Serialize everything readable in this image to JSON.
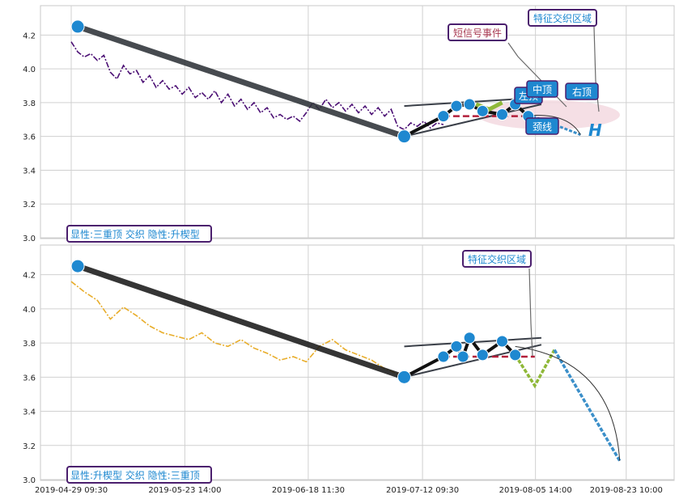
{
  "chart_data": [
    {
      "type": "line",
      "panel": "top",
      "ylim": [
        3.0,
        4.35
      ],
      "yticks": [
        "3.0",
        "3.2",
        "3.4",
        "3.6",
        "3.8",
        "4.0",
        "4.2"
      ],
      "grid": true,
      "colors": {
        "price": "#4b0f74",
        "trend": "#2e3338",
        "pivot": "#1e88d0",
        "band": "#f3d9e1",
        "neck": "#b21f3a",
        "wedge": "#8fb838"
      },
      "price_series": [
        {
          "d": 0,
          "y": 4.16
        },
        {
          "d": 1,
          "y": 4.1
        },
        {
          "d": 2,
          "y": 4.07
        },
        {
          "d": 3,
          "y": 4.09
        },
        {
          "d": 4,
          "y": 4.05
        },
        {
          "d": 5,
          "y": 4.08
        },
        {
          "d": 6,
          "y": 3.98
        },
        {
          "d": 7,
          "y": 3.94
        },
        {
          "d": 8,
          "y": 4.02
        },
        {
          "d": 9,
          "y": 3.97
        },
        {
          "d": 10,
          "y": 3.99
        },
        {
          "d": 11,
          "y": 3.92
        },
        {
          "d": 12,
          "y": 3.96
        },
        {
          "d": 13,
          "y": 3.89
        },
        {
          "d": 14,
          "y": 3.93
        },
        {
          "d": 15,
          "y": 3.88
        },
        {
          "d": 16,
          "y": 3.9
        },
        {
          "d": 17,
          "y": 3.85
        },
        {
          "d": 18,
          "y": 3.89
        },
        {
          "d": 19,
          "y": 3.83
        },
        {
          "d": 20,
          "y": 3.86
        },
        {
          "d": 21,
          "y": 3.82
        },
        {
          "d": 22,
          "y": 3.87
        },
        {
          "d": 23,
          "y": 3.8
        },
        {
          "d": 24,
          "y": 3.85
        },
        {
          "d": 25,
          "y": 3.78
        },
        {
          "d": 26,
          "y": 3.82
        },
        {
          "d": 27,
          "y": 3.76
        },
        {
          "d": 28,
          "y": 3.8
        },
        {
          "d": 29,
          "y": 3.74
        },
        {
          "d": 30,
          "y": 3.77
        },
        {
          "d": 31,
          "y": 3.71
        },
        {
          "d": 32,
          "y": 3.73
        },
        {
          "d": 33,
          "y": 3.7
        },
        {
          "d": 34,
          "y": 3.72
        },
        {
          "d": 35,
          "y": 3.69
        },
        {
          "d": 36,
          "y": 3.74
        },
        {
          "d": 37,
          "y": 3.8
        },
        {
          "d": 38,
          "y": 3.76
        },
        {
          "d": 39,
          "y": 3.82
        },
        {
          "d": 40,
          "y": 3.77
        },
        {
          "d": 41,
          "y": 3.8
        },
        {
          "d": 42,
          "y": 3.75
        },
        {
          "d": 43,
          "y": 3.79
        },
        {
          "d": 44,
          "y": 3.74
        },
        {
          "d": 45,
          "y": 3.78
        },
        {
          "d": 46,
          "y": 3.73
        },
        {
          "d": 47,
          "y": 3.77
        },
        {
          "d": 48,
          "y": 3.72
        },
        {
          "d": 49,
          "y": 3.76
        },
        {
          "d": 50,
          "y": 3.66
        },
        {
          "d": 51,
          "y": 3.64
        },
        {
          "d": 52,
          "y": 3.68
        },
        {
          "d": 53,
          "y": 3.66
        },
        {
          "d": 54,
          "y": 3.69
        },
        {
          "d": 55,
          "y": 3.65
        },
        {
          "d": 56,
          "y": 3.68
        },
        {
          "d": 57,
          "y": 3.67
        }
      ],
      "trend_line": [
        {
          "d": 1,
          "y": 4.25
        },
        {
          "d": 51,
          "y": 3.6
        }
      ],
      "pivots": [
        {
          "d": 1,
          "y": 4.25
        },
        {
          "d": 51,
          "y": 3.6
        },
        {
          "d": 57,
          "y": 3.72
        },
        {
          "d": 59,
          "y": 3.78
        },
        {
          "d": 61,
          "y": 3.79
        },
        {
          "d": 63,
          "y": 3.75
        },
        {
          "d": 66,
          "y": 3.73
        },
        {
          "d": 68,
          "y": 3.79
        },
        {
          "d": 70,
          "y": 3.72
        }
      ],
      "labels": [
        {
          "text": "短信号事件",
          "color": "#a83a52"
        },
        {
          "text": "特征交织区域",
          "color": "#1e88d0"
        },
        {
          "text": "左顶",
          "color": "#ffffff"
        },
        {
          "text": "中顶",
          "color": "#ffffff"
        },
        {
          "text": "右顶",
          "color": "#ffffff"
        },
        {
          "text": "颈线",
          "color": "#ffffff"
        },
        {
          "text": "H",
          "color": "#1e88d0"
        }
      ],
      "info": "显性:三重顶 交织 隐性:升楔型"
    },
    {
      "type": "line",
      "panel": "bottom",
      "ylim": [
        3.0,
        4.35
      ],
      "yticks": [
        "3.0",
        "3.2",
        "3.4",
        "3.6",
        "3.8",
        "4.0",
        "4.2"
      ],
      "xticks": [
        "2019-04-29 09:30",
        "2019-05-23 14:00",
        "2019-06-18 11:30",
        "2019-07-12 09:30",
        "2019-08-05 14:00",
        "2019-08-23 10:00"
      ],
      "grid": true,
      "colors": {
        "price": "#e8ad2a",
        "trend": "#1a1a1a",
        "pivot": "#1e88d0",
        "neck": "#b21f3a",
        "wedge": "#8fb838",
        "drop": "#3b8fc9"
      },
      "price_series": [
        {
          "d": 0,
          "y": 4.16
        },
        {
          "d": 2,
          "y": 4.1
        },
        {
          "d": 4,
          "y": 4.05
        },
        {
          "d": 6,
          "y": 3.94
        },
        {
          "d": 8,
          "y": 4.01
        },
        {
          "d": 10,
          "y": 3.96
        },
        {
          "d": 12,
          "y": 3.9
        },
        {
          "d": 14,
          "y": 3.86
        },
        {
          "d": 16,
          "y": 3.84
        },
        {
          "d": 18,
          "y": 3.82
        },
        {
          "d": 20,
          "y": 3.86
        },
        {
          "d": 22,
          "y": 3.8
        },
        {
          "d": 24,
          "y": 3.78
        },
        {
          "d": 26,
          "y": 3.82
        },
        {
          "d": 28,
          "y": 3.77
        },
        {
          "d": 30,
          "y": 3.74
        },
        {
          "d": 32,
          "y": 3.7
        },
        {
          "d": 34,
          "y": 3.72
        },
        {
          "d": 36,
          "y": 3.69
        },
        {
          "d": 38,
          "y": 3.78
        },
        {
          "d": 40,
          "y": 3.82
        },
        {
          "d": 42,
          "y": 3.76
        },
        {
          "d": 44,
          "y": 3.73
        },
        {
          "d": 46,
          "y": 3.7
        },
        {
          "d": 48,
          "y": 3.65
        },
        {
          "d": 50,
          "y": 3.62
        }
      ],
      "trend_line": [
        {
          "d": 1,
          "y": 4.25
        },
        {
          "d": 51,
          "y": 3.6
        }
      ],
      "pivots": [
        {
          "d": 1,
          "y": 4.25
        },
        {
          "d": 51,
          "y": 3.6
        },
        {
          "d": 57,
          "y": 3.72
        },
        {
          "d": 59,
          "y": 3.78
        },
        {
          "d": 60,
          "y": 3.72
        },
        {
          "d": 61,
          "y": 3.83
        },
        {
          "d": 63,
          "y": 3.73
        },
        {
          "d": 66,
          "y": 3.81
        },
        {
          "d": 68,
          "y": 3.73
        }
      ],
      "labels": [
        {
          "text": "特征交织区域",
          "color": "#1e88d0"
        }
      ],
      "info": "显性:升楔型 交织 隐性:三重顶"
    }
  ]
}
